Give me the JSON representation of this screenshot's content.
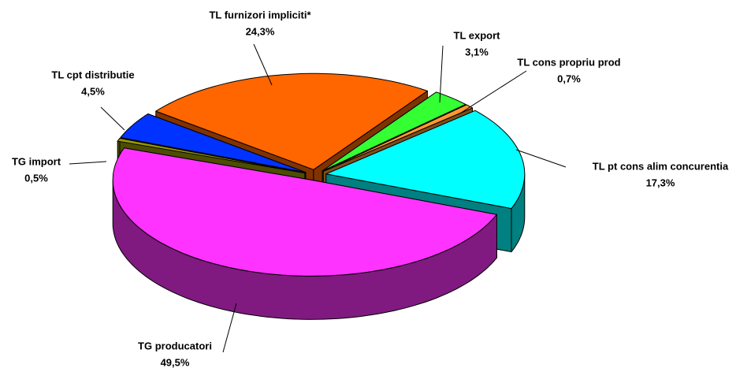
{
  "chart_data": {
    "type": "pie3d",
    "categories": [
      "TL export",
      "TL cons propriu prod",
      "TL pt cons alim concurentia",
      "TG producatori",
      "TG import",
      "TL cpt distributie",
      "TL furnizori impliciti*"
    ],
    "values": [
      3.1,
      0.7,
      17.3,
      49.5,
      0.5,
      4.5,
      24.3
    ],
    "value_labels": [
      "3,1%",
      "0,7%",
      "17,3%",
      "49,5%",
      "0,5%",
      "4,5%",
      "24,3%"
    ],
    "colors": [
      "#33ff33",
      "#ff9933",
      "#00ffff",
      "#ff33ff",
      "#999900",
      "#0033ff",
      "#ff6600"
    ]
  }
}
